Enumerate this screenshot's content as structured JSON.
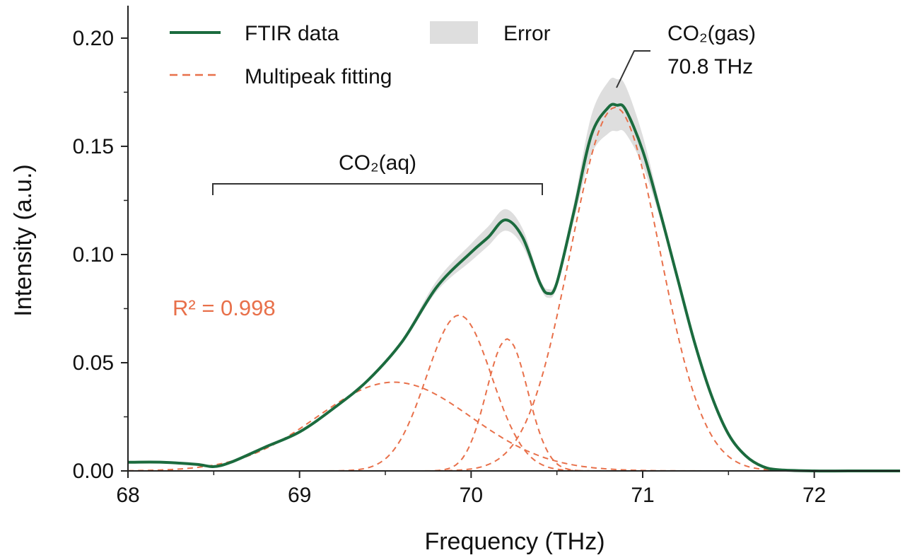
{
  "chart_data": {
    "type": "line",
    "xlabel": "Frequency (THz)",
    "ylabel": "Intensity (a.u.)",
    "xlim": [
      68.0,
      72.5
    ],
    "ylim": [
      0.0,
      0.215
    ],
    "x_ticks": [
      68,
      69,
      70,
      71,
      72
    ],
    "x_tick_labels": [
      "68",
      "69",
      "70",
      "71",
      "72"
    ],
    "y_ticks": [
      0.0,
      0.05,
      0.1,
      0.15,
      0.2
    ],
    "y_tick_labels": [
      "0.00",
      "0.05",
      "0.10",
      "0.15",
      "0.20"
    ],
    "grid": false,
    "legend_position": "top",
    "legend": [
      {
        "label": "FTIR data",
        "style": "solid-line",
        "color": "#1b6b3e"
      },
      {
        "label": "Error",
        "style": "band",
        "color": "#d9d9d9"
      },
      {
        "label": "Multipeak fitting",
        "style": "dashed-line",
        "color": "#e8704a"
      }
    ],
    "series": [
      {
        "name": "FTIR data",
        "color": "#1b6b3e",
        "x": [
          68.0,
          68.2,
          68.4,
          68.5,
          68.6,
          68.8,
          69.0,
          69.2,
          69.4,
          69.6,
          69.8,
          70.0,
          70.1,
          70.2,
          70.3,
          70.4,
          70.45,
          70.5,
          70.6,
          70.7,
          70.8,
          70.85,
          70.9,
          71.0,
          71.1,
          71.2,
          71.3,
          71.4,
          71.5,
          71.6,
          71.7,
          71.8,
          72.0,
          72.2,
          72.5
        ],
        "y": [
          0.004,
          0.004,
          0.003,
          0.002,
          0.004,
          0.011,
          0.018,
          0.029,
          0.042,
          0.06,
          0.085,
          0.101,
          0.108,
          0.116,
          0.108,
          0.087,
          0.082,
          0.087,
          0.12,
          0.155,
          0.168,
          0.169,
          0.167,
          0.148,
          0.12,
          0.09,
          0.06,
          0.035,
          0.017,
          0.007,
          0.002,
          0.0005,
          0.0,
          0.0,
          0.0
        ]
      },
      {
        "name": "Error",
        "color": "#d9d9d9",
        "x": [
          68.6,
          68.8,
          69.0,
          69.2,
          69.4,
          69.6,
          69.8,
          70.0,
          70.1,
          70.2,
          70.3,
          70.4,
          70.45,
          70.5,
          70.6,
          70.7,
          70.8,
          70.85,
          70.9,
          71.0,
          71.1,
          71.2,
          71.3,
          71.4,
          71.5
        ],
        "y_lower": [
          0.004,
          0.011,
          0.018,
          0.029,
          0.042,
          0.059,
          0.083,
          0.097,
          0.104,
          0.111,
          0.104,
          0.085,
          0.08,
          0.085,
          0.116,
          0.146,
          0.156,
          0.157,
          0.156,
          0.141,
          0.117,
          0.089,
          0.06,
          0.035,
          0.017
        ],
        "y_upper": [
          0.004,
          0.011,
          0.018,
          0.029,
          0.042,
          0.061,
          0.088,
          0.105,
          0.113,
          0.121,
          0.112,
          0.089,
          0.084,
          0.089,
          0.124,
          0.164,
          0.18,
          0.181,
          0.178,
          0.155,
          0.123,
          0.091,
          0.06,
          0.035,
          0.017
        ]
      },
      {
        "name": "Multipeak fitting",
        "color": "#e8704a",
        "peaks": [
          {
            "center": 69.55,
            "amplitude": 0.041,
            "sigma": 0.45
          },
          {
            "center": 69.93,
            "amplitude": 0.072,
            "sigma": 0.19
          },
          {
            "center": 70.21,
            "amplitude": 0.061,
            "sigma": 0.12
          },
          {
            "center": 70.84,
            "amplitude": 0.168,
            "sigma": 0.26
          }
        ]
      }
    ],
    "annotations": [
      {
        "text": "CO₂(aq)",
        "x_start": 68.5,
        "x_end": 70.42,
        "y": 0.131
      },
      {
        "line1": "CO₂(gas)",
        "line2": "70.8 THz",
        "x": 70.8,
        "y": 0.172
      },
      {
        "text": "R² = 0.998",
        "x": 68.25,
        "y": 0.074
      }
    ]
  }
}
